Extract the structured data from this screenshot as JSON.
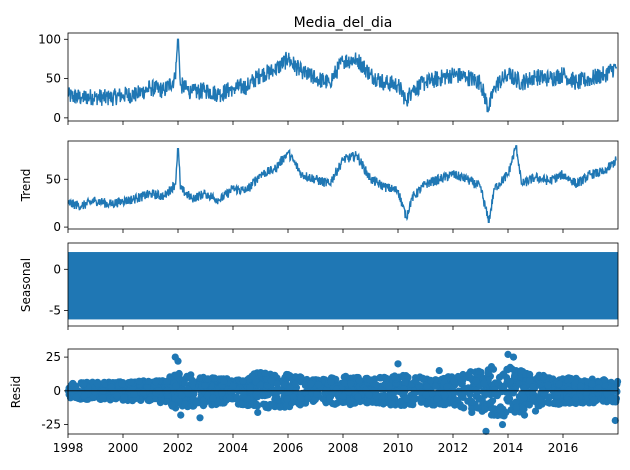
{
  "chart_data": [
    {
      "type": "line",
      "title": "Media_del_dia",
      "ylabel": "",
      "ylim": [
        -4,
        108
      ],
      "yticks": [
        0,
        50,
        100
      ],
      "xlim": [
        1998,
        2018
      ],
      "color": "#1f77b4",
      "series": [
        {
          "x": [
            1998.0,
            1998.5,
            1999.0,
            1999.5,
            2000.0,
            2000.5,
            2001.0,
            2001.5,
            2001.9,
            2002.0,
            2002.1,
            2002.5,
            2003.0,
            2003.5,
            2004.0,
            2004.5,
            2005.0,
            2005.5,
            2006.0,
            2006.5,
            2007.0,
            2007.5,
            2008.0,
            2008.5,
            2009.0,
            2009.5,
            2010.0,
            2010.3,
            2010.5,
            2011.0,
            2011.5,
            2012.0,
            2012.5,
            2013.0,
            2013.3,
            2013.5,
            2014.0,
            2014.5,
            2015.0,
            2015.5,
            2016.0,
            2016.5,
            2017.0,
            2017.5,
            2017.95
          ],
          "values": [
            28,
            26,
            27,
            25,
            29,
            30,
            38,
            35,
            50,
            100,
            42,
            32,
            35,
            30,
            38,
            40,
            55,
            60,
            75,
            58,
            50,
            45,
            72,
            75,
            55,
            45,
            42,
            22,
            35,
            45,
            50,
            55,
            52,
            45,
            10,
            40,
            55,
            45,
            52,
            50,
            55,
            45,
            50,
            55,
            65
          ]
        }
      ]
    },
    {
      "type": "line",
      "title": "",
      "ylabel": "Trend",
      "ylim": [
        -2,
        90
      ],
      "yticks": [
        0,
        50
      ],
      "xlim": [
        1998,
        2018
      ],
      "color": "#1f77b4",
      "series": [
        {
          "x": [
            1998.0,
            1998.5,
            1999.0,
            1999.5,
            2000.0,
            2000.5,
            2001.0,
            2001.5,
            2001.9,
            2002.0,
            2002.1,
            2002.5,
            2003.0,
            2003.5,
            2004.0,
            2004.5,
            2005.0,
            2005.5,
            2006.0,
            2006.5,
            2007.0,
            2007.5,
            2008.0,
            2008.5,
            2009.0,
            2009.5,
            2010.0,
            2010.3,
            2010.5,
            2011.0,
            2011.5,
            2012.0,
            2012.5,
            2013.0,
            2013.3,
            2013.5,
            2014.0,
            2014.3,
            2014.5,
            2015.0,
            2015.5,
            2016.0,
            2016.5,
            2017.0,
            2017.5,
            2017.95
          ],
          "values": [
            25,
            22,
            28,
            24,
            27,
            30,
            35,
            32,
            45,
            82,
            40,
            30,
            35,
            28,
            40,
            38,
            55,
            60,
            78,
            55,
            50,
            45,
            70,
            75,
            50,
            42,
            38,
            10,
            30,
            45,
            50,
            55,
            50,
            42,
            5,
            40,
            55,
            85,
            45,
            52,
            48,
            55,
            45,
            55,
            58,
            70
          ]
        }
      ]
    },
    {
      "type": "area",
      "title": "",
      "ylabel": "Seasonal",
      "ylim": [
        -6.9,
        3.2
      ],
      "yticks": [
        -5,
        0
      ],
      "xlim": [
        1998,
        2018
      ],
      "color": "#1f77b4",
      "band": [
        -6.1,
        2.1
      ]
    },
    {
      "type": "scatter",
      "title": "",
      "ylabel": "Resid",
      "ylim": [
        -32,
        31
      ],
      "yticks": [
        -25,
        0,
        25
      ],
      "xlim": [
        1998,
        2018
      ],
      "xticks": [
        "1998",
        "2000",
        "2002",
        "2004",
        "2006",
        "2008",
        "2010",
        "2012",
        "2014",
        "2016"
      ],
      "color": "#1f77b4",
      "series": [
        {
          "x": [
            2001.9,
            2002.0,
            2002.1,
            2002.8,
            2004.9,
            2006.0,
            2010.0,
            2011.5,
            2013.2,
            2013.4,
            2013.8,
            2014.0,
            2014.2,
            2014.6,
            2015.0,
            2017.9
          ],
          "values": [
            25,
            22,
            -18,
            -20,
            -16,
            12,
            20,
            15,
            -30,
            18,
            -25,
            27,
            25,
            -18,
            -15,
            -22
          ]
        }
      ],
      "band_envelope": {
        "x": [
          1998.0,
          2000.0,
          2001.5,
          2002.0,
          2003.0,
          2004.0,
          2005.0,
          2006.0,
          2007.0,
          2008.0,
          2009.0,
          2010.0,
          2011.0,
          2012.0,
          2013.0,
          2014.0,
          2015.0,
          2016.0,
          2017.0,
          2018.0
        ],
        "upper": [
          6,
          7,
          8,
          14,
          10,
          9,
          14,
          12,
          9,
          11,
          9,
          12,
          10,
          11,
          16,
          18,
          12,
          10,
          9,
          8
        ],
        "lower": [
          -6,
          -7,
          -9,
          -14,
          -11,
          -9,
          -14,
          -12,
          -9,
          -11,
          -9,
          -11,
          -10,
          -12,
          -18,
          -20,
          -12,
          -10,
          -9,
          -9
        ]
      }
    }
  ]
}
